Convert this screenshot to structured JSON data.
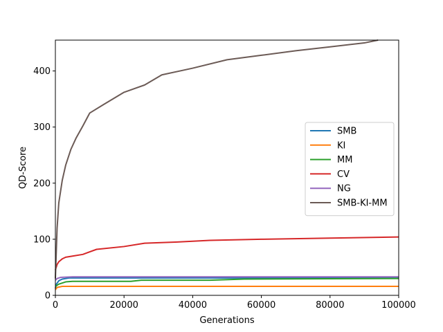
{
  "chart_data": {
    "type": "line",
    "title": "",
    "xlabel": "Generations",
    "ylabel": "QD-Score",
    "xlim": [
      0,
      100000
    ],
    "ylim": [
      0,
      455
    ],
    "xticks": [
      0,
      20000,
      40000,
      60000,
      80000,
      100000
    ],
    "xtick_labels": [
      "0",
      "20000",
      "40000",
      "60000",
      "80000",
      "100000"
    ],
    "yticks": [
      0,
      100,
      200,
      300,
      400
    ],
    "ytick_labels": [
      "0",
      "100",
      "200",
      "300",
      "400"
    ],
    "grid": false,
    "legend_position": "center-right",
    "series": [
      {
        "name": "SMB",
        "color": "#1f77b4",
        "x": [
          0,
          300,
          1000,
          2000,
          4000,
          100000
        ],
        "y": [
          12,
          20,
          26,
          29,
          31,
          31
        ]
      },
      {
        "name": "KI",
        "color": "#ff7f0e",
        "x": [
          0,
          500,
          2000,
          100000
        ],
        "y": [
          10,
          14,
          16,
          16
        ]
      },
      {
        "name": "MM",
        "color": "#2ca02c",
        "x": [
          0,
          1000,
          3000,
          5000,
          10000,
          22000,
          25000,
          45000,
          55000,
          100000
        ],
        "y": [
          16,
          20,
          24,
          25,
          25,
          25,
          27,
          27,
          29,
          30
        ]
      },
      {
        "name": "CV",
        "color": "#d62728",
        "x": [
          0,
          500,
          1000,
          2000,
          3000,
          5000,
          8000,
          12000,
          20000,
          26000,
          35000,
          45000,
          60000,
          80000,
          100000
        ],
        "y": [
          45,
          55,
          60,
          65,
          68,
          70,
          73,
          82,
          87,
          93,
          95,
          98,
          100,
          102,
          104
        ]
      },
      {
        "name": "NG",
        "color": "#9467bd",
        "x": [
          0,
          500,
          1500,
          5000,
          100000
        ],
        "y": [
          27,
          30,
          32,
          33,
          33
        ]
      },
      {
        "name": "SMB-KI-MM",
        "color": "#6b5a55",
        "x": [
          0,
          500,
          1000,
          2000,
          3000,
          4500,
          6000,
          8000,
          10000,
          14000,
          20000,
          26000,
          31000,
          40000,
          50000,
          60000,
          70000,
          80000,
          90000,
          94000
        ],
        "y": [
          30,
          120,
          165,
          205,
          232,
          260,
          280,
          302,
          325,
          340,
          362,
          375,
          393,
          405,
          420,
          428,
          436,
          443,
          450,
          455
        ]
      }
    ]
  }
}
